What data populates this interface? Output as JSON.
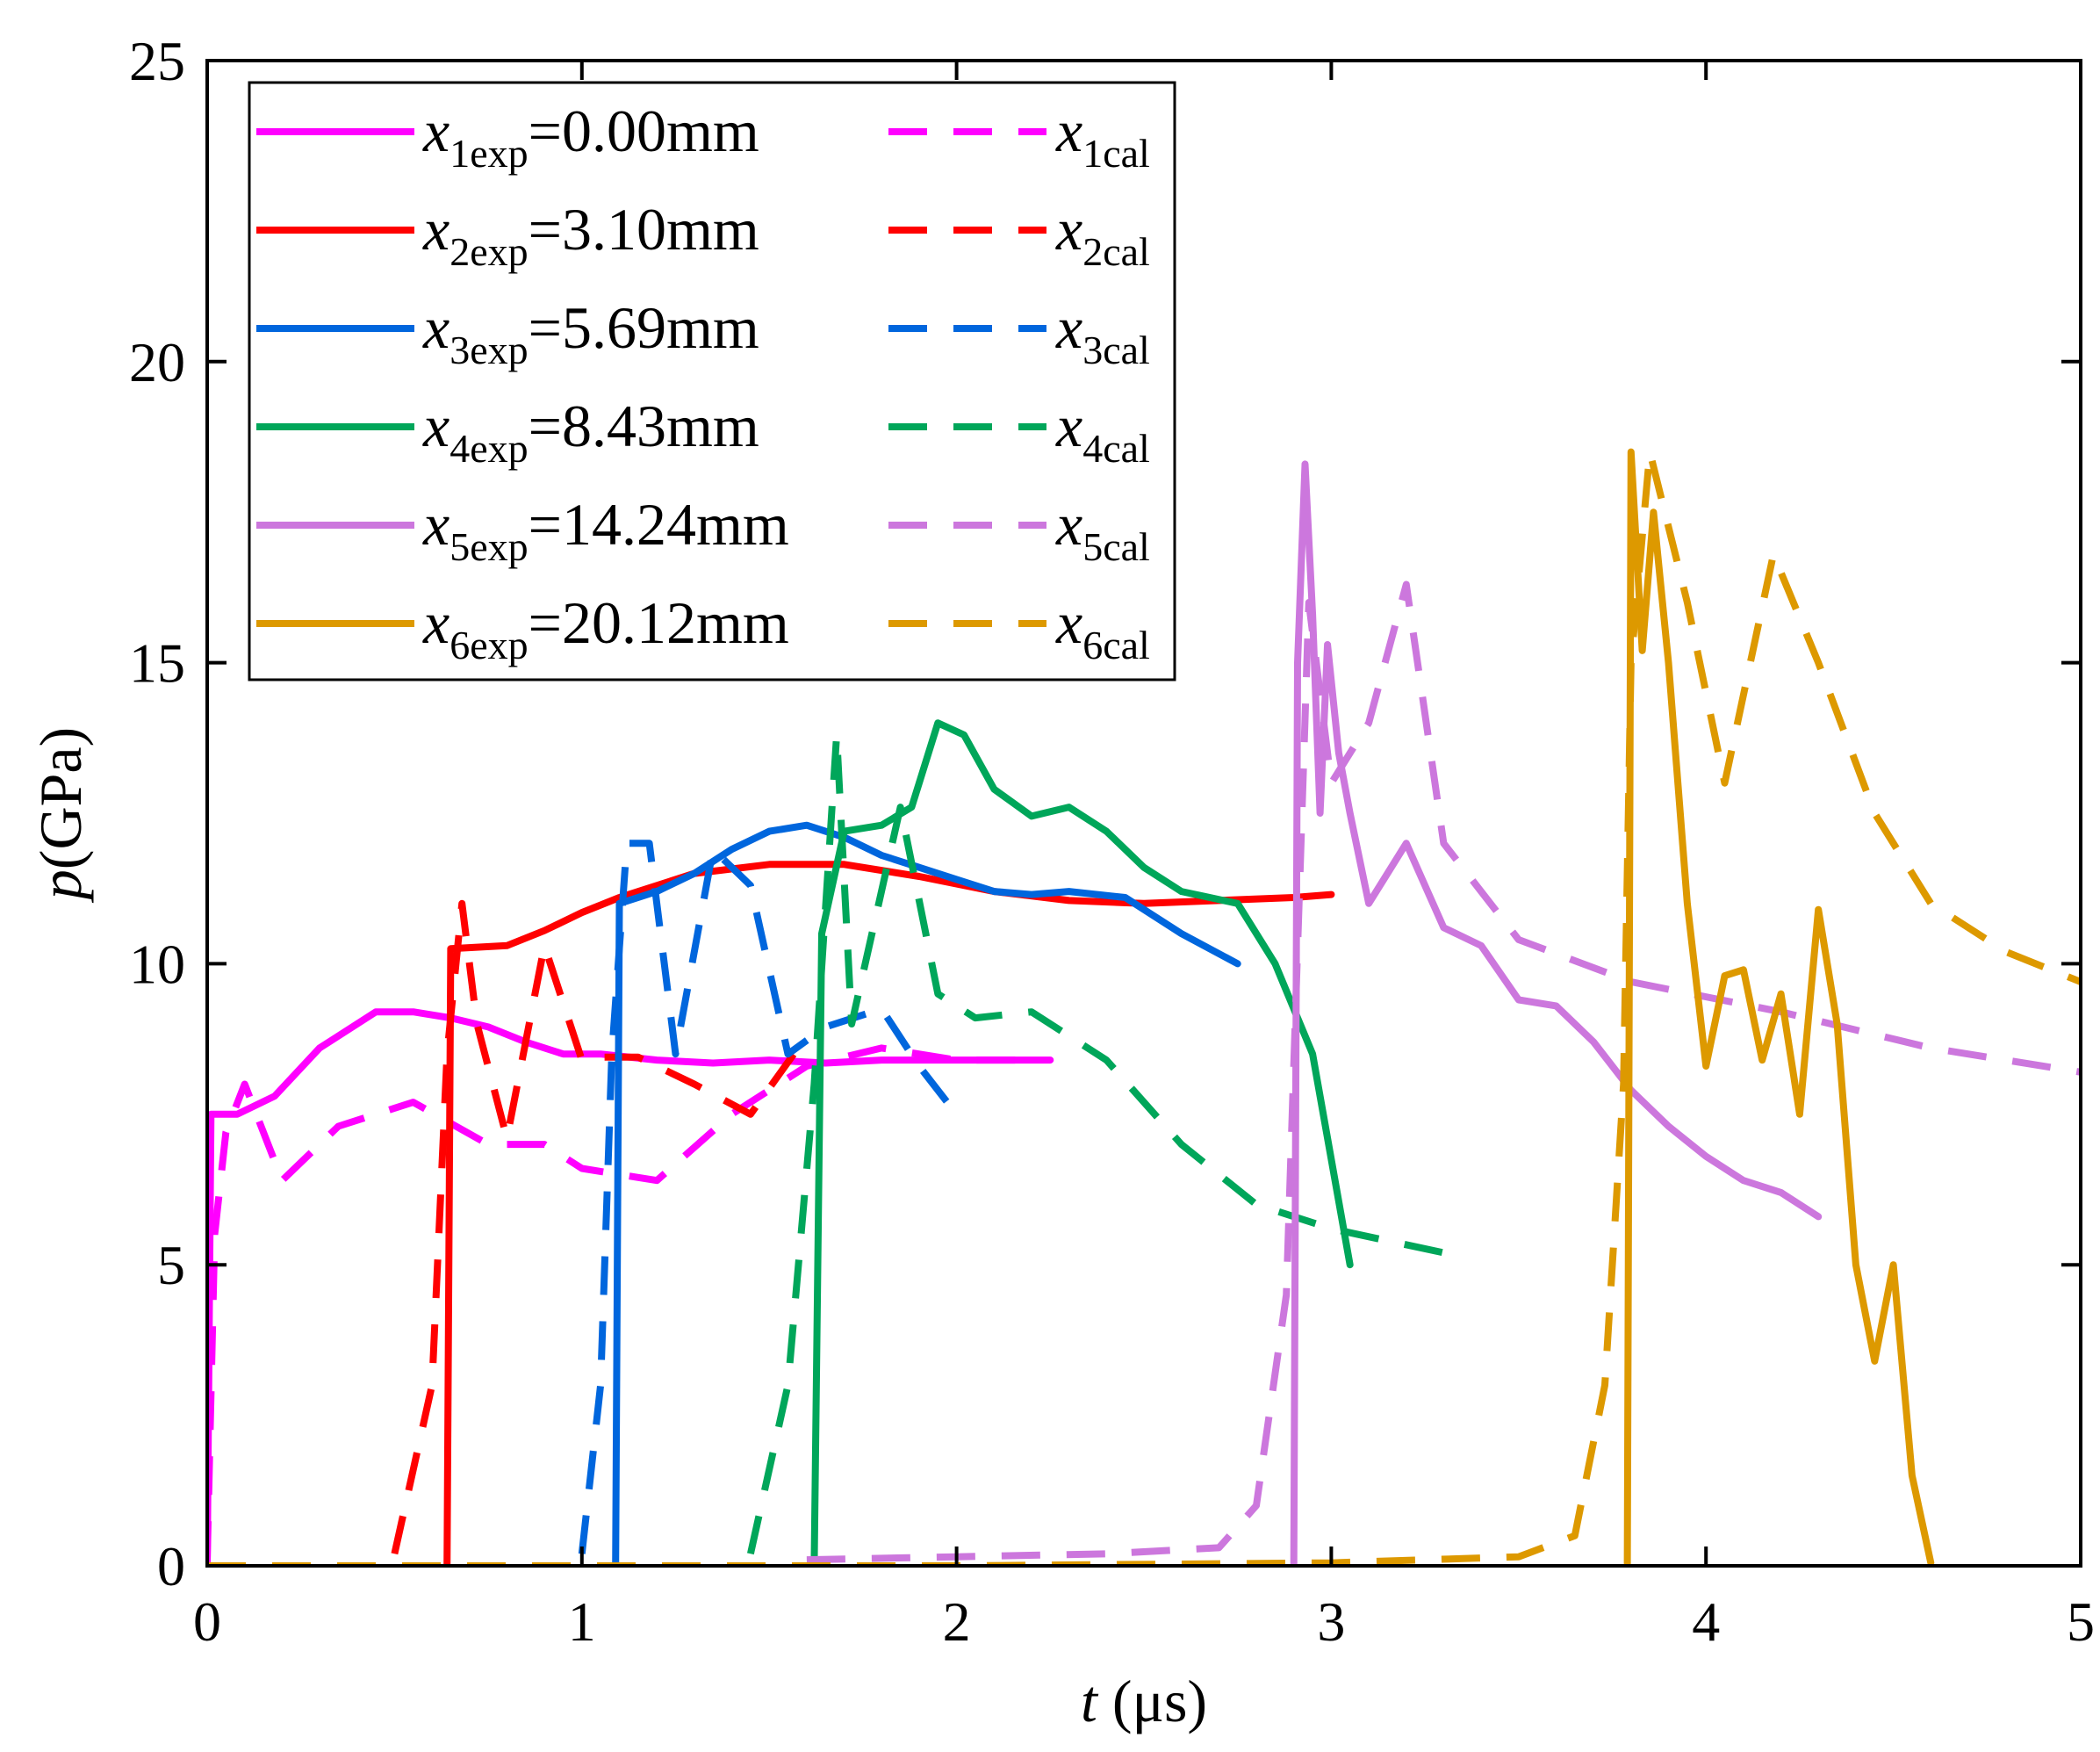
{
  "chart_data": {
    "type": "line",
    "title": "",
    "xlabel": {
      "var": "t",
      "unit": " (μs)"
    },
    "ylabel": {
      "var": "p",
      "unit": "(GPa)"
    },
    "xlim": [
      0,
      5
    ],
    "ylim": [
      0,
      25
    ],
    "xticks": [
      0,
      1,
      2,
      3,
      4,
      5
    ],
    "yticks": [
      0,
      5,
      10,
      15,
      20,
      25
    ],
    "grid": false,
    "legend_position": "top-left",
    "series": [
      {
        "name": "x1exp=0.00mm",
        "var": "x",
        "index": "1",
        "sub": "exp",
        "value": "=0.00mm",
        "color": "#ff00ff",
        "dash": "solid",
        "points": [
          [
            0.0,
            0.0
          ],
          [
            0.01,
            7.5
          ],
          [
            0.08,
            7.5
          ],
          [
            0.18,
            7.8
          ],
          [
            0.3,
            8.6
          ],
          [
            0.45,
            9.2
          ],
          [
            0.55,
            9.2
          ],
          [
            0.65,
            9.1
          ],
          [
            0.75,
            8.95
          ],
          [
            0.85,
            8.7
          ],
          [
            0.95,
            8.5
          ],
          [
            1.05,
            8.5
          ],
          [
            1.2,
            8.4
          ],
          [
            1.35,
            8.35
          ],
          [
            1.5,
            8.4
          ],
          [
            1.65,
            8.35
          ],
          [
            1.8,
            8.4
          ],
          [
            1.95,
            8.4
          ],
          [
            2.1,
            8.4
          ],
          [
            2.25,
            8.4
          ]
        ]
      },
      {
        "name": "x1cal",
        "var": "x",
        "index": "1",
        "sub": "cal",
        "value": "",
        "color": "#ff00ff",
        "dash": "dashed",
        "points": [
          [
            0.0,
            0.1
          ],
          [
            0.02,
            5.5
          ],
          [
            0.05,
            7.2
          ],
          [
            0.1,
            8.0
          ],
          [
            0.2,
            6.4
          ],
          [
            0.35,
            7.3
          ],
          [
            0.55,
            7.7
          ],
          [
            0.75,
            7.0
          ],
          [
            0.9,
            7.0
          ],
          [
            1.0,
            6.6
          ],
          [
            1.2,
            6.4
          ],
          [
            1.4,
            7.5
          ],
          [
            1.6,
            8.3
          ],
          [
            1.8,
            8.6
          ],
          [
            2.0,
            8.4
          ],
          [
            2.2,
            8.4
          ]
        ]
      },
      {
        "name": "x2exp=3.10mm",
        "var": "x",
        "index": "2",
        "sub": "exp",
        "value": "=3.10mm",
        "color": "#ff0000",
        "dash": "solid",
        "points": [
          [
            0.64,
            0.0
          ],
          [
            0.65,
            10.25
          ],
          [
            0.8,
            10.3
          ],
          [
            0.9,
            10.55
          ],
          [
            1.0,
            10.85
          ],
          [
            1.1,
            11.1
          ],
          [
            1.3,
            11.5
          ],
          [
            1.5,
            11.65
          ],
          [
            1.7,
            11.65
          ],
          [
            1.9,
            11.45
          ],
          [
            2.1,
            11.2
          ],
          [
            2.3,
            11.05
          ],
          [
            2.5,
            11.0
          ],
          [
            2.7,
            11.05
          ],
          [
            2.9,
            11.1
          ],
          [
            3.0,
            11.15
          ]
        ]
      },
      {
        "name": "x2cal",
        "var": "x",
        "index": "2",
        "sub": "cal",
        "value": "",
        "color": "#ff0000",
        "dash": "dashed",
        "points": [
          [
            0.5,
            0.2
          ],
          [
            0.6,
            3.0
          ],
          [
            0.64,
            8.5
          ],
          [
            0.68,
            11.0
          ],
          [
            0.72,
            9.0
          ],
          [
            0.8,
            7.1
          ],
          [
            0.9,
            10.3
          ],
          [
            1.0,
            8.4
          ],
          [
            1.05,
            8.45
          ],
          [
            1.15,
            8.45
          ],
          [
            1.3,
            8.0
          ],
          [
            1.45,
            7.5
          ],
          [
            1.6,
            8.8
          ]
        ]
      },
      {
        "name": "x3exp=5.69mm",
        "var": "x",
        "index": "3",
        "sub": "exp",
        "value": "=5.69mm",
        "color": "#0066dd",
        "dash": "solid",
        "points": [
          [
            1.09,
            0.0
          ],
          [
            1.1,
            11.0
          ],
          [
            1.2,
            11.2
          ],
          [
            1.3,
            11.5
          ],
          [
            1.4,
            11.9
          ],
          [
            1.5,
            12.2
          ],
          [
            1.6,
            12.3
          ],
          [
            1.7,
            12.1
          ],
          [
            1.8,
            11.8
          ],
          [
            1.9,
            11.6
          ],
          [
            2.0,
            11.4
          ],
          [
            2.1,
            11.2
          ],
          [
            2.2,
            11.15
          ],
          [
            2.3,
            11.2
          ],
          [
            2.45,
            11.1
          ],
          [
            2.6,
            10.5
          ],
          [
            2.75,
            10.0
          ]
        ]
      },
      {
        "name": "x3cal",
        "var": "x",
        "index": "3",
        "sub": "cal",
        "value": "",
        "color": "#0066dd",
        "dash": "dashed",
        "points": [
          [
            1.0,
            0.2
          ],
          [
            1.05,
            3.0
          ],
          [
            1.08,
            8.5
          ],
          [
            1.12,
            12.0
          ],
          [
            1.18,
            12.0
          ],
          [
            1.25,
            8.5
          ],
          [
            1.35,
            11.9
          ],
          [
            1.45,
            11.3
          ],
          [
            1.55,
            8.5
          ],
          [
            1.65,
            8.95
          ],
          [
            1.8,
            9.25
          ],
          [
            1.9,
            8.3
          ],
          [
            2.0,
            7.5
          ]
        ]
      },
      {
        "name": "x4exp=8.43mm",
        "var": "x",
        "index": "4",
        "sub": "exp",
        "value": "=8.43mm",
        "color": "#00a65a",
        "dash": "solid",
        "points": [
          [
            1.62,
            0.0
          ],
          [
            1.64,
            10.5
          ],
          [
            1.7,
            12.2
          ],
          [
            1.8,
            12.3
          ],
          [
            1.88,
            12.6
          ],
          [
            1.95,
            14.0
          ],
          [
            2.02,
            13.8
          ],
          [
            2.1,
            12.9
          ],
          [
            2.2,
            12.45
          ],
          [
            2.3,
            12.6
          ],
          [
            2.4,
            12.2
          ],
          [
            2.5,
            11.6
          ],
          [
            2.6,
            11.2
          ],
          [
            2.75,
            11.0
          ],
          [
            2.85,
            10.0
          ],
          [
            2.95,
            8.5
          ],
          [
            3.05,
            5.0
          ]
        ]
      },
      {
        "name": "x4cal",
        "var": "x",
        "index": "4",
        "sub": "cal",
        "value": "",
        "color": "#00a65a",
        "dash": "dashed",
        "points": [
          [
            1.45,
            0.2
          ],
          [
            1.55,
            3.0
          ],
          [
            1.62,
            8.0
          ],
          [
            1.68,
            13.8
          ],
          [
            1.72,
            9.0
          ],
          [
            1.85,
            12.6
          ],
          [
            1.95,
            9.5
          ],
          [
            2.05,
            9.1
          ],
          [
            2.2,
            9.2
          ],
          [
            2.4,
            8.4
          ],
          [
            2.6,
            7.0
          ],
          [
            2.8,
            6.0
          ],
          [
            3.0,
            5.6
          ],
          [
            3.3,
            5.2
          ]
        ]
      },
      {
        "name": "x5exp=14.24mm",
        "var": "x",
        "index": "5",
        "sub": "exp",
        "value": "=14.24mm",
        "color": "#cc77dd",
        "dash": "solid",
        "points": [
          [
            2.9,
            0.0
          ],
          [
            2.91,
            15.0
          ],
          [
            2.93,
            18.3
          ],
          [
            2.95,
            15.8
          ],
          [
            2.97,
            12.5
          ],
          [
            2.99,
            15.3
          ],
          [
            3.02,
            13.5
          ],
          [
            3.05,
            12.5
          ],
          [
            3.1,
            11.0
          ],
          [
            3.15,
            11.5
          ],
          [
            3.2,
            12.0
          ],
          [
            3.3,
            10.6
          ],
          [
            3.4,
            10.3
          ],
          [
            3.5,
            9.4
          ],
          [
            3.6,
            9.3
          ],
          [
            3.7,
            8.7
          ],
          [
            3.8,
            7.9
          ],
          [
            3.9,
            7.3
          ],
          [
            4.0,
            6.8
          ],
          [
            4.1,
            6.4
          ],
          [
            4.2,
            6.2
          ],
          [
            4.3,
            5.8
          ]
        ]
      },
      {
        "name": "x5cal",
        "var": "x",
        "index": "5",
        "sub": "cal",
        "value": "",
        "color": "#cc77dd",
        "dash": "dashed",
        "points": [
          [
            1.6,
            0.1
          ],
          [
            2.0,
            0.15
          ],
          [
            2.4,
            0.2
          ],
          [
            2.7,
            0.3
          ],
          [
            2.8,
            1.0
          ],
          [
            2.88,
            4.5
          ],
          [
            2.94,
            16.0
          ],
          [
            3.0,
            13.0
          ],
          [
            3.1,
            14.0
          ],
          [
            3.2,
            16.3
          ],
          [
            3.3,
            12.0
          ],
          [
            3.5,
            10.4
          ],
          [
            3.8,
            9.7
          ],
          [
            4.2,
            9.2
          ],
          [
            4.6,
            8.6
          ],
          [
            5.0,
            8.2
          ]
        ]
      },
      {
        "name": "x6exp=20.12mm",
        "var": "x",
        "index": "6",
        "sub": "exp",
        "value": "=20.12mm",
        "color": "#dd9900",
        "dash": "solid",
        "points": [
          [
            3.79,
            0.0
          ],
          [
            3.8,
            18.5
          ],
          [
            3.83,
            15.2
          ],
          [
            3.86,
            17.5
          ],
          [
            3.9,
            15.0
          ],
          [
            3.95,
            11.0
          ],
          [
            4.0,
            8.3
          ],
          [
            4.05,
            9.8
          ],
          [
            4.1,
            9.9
          ],
          [
            4.15,
            8.4
          ],
          [
            4.2,
            9.5
          ],
          [
            4.25,
            7.5
          ],
          [
            4.3,
            10.9
          ],
          [
            4.35,
            9.0
          ],
          [
            4.4,
            5.0
          ],
          [
            4.45,
            3.4
          ],
          [
            4.5,
            5.0
          ],
          [
            4.55,
            1.5
          ],
          [
            4.6,
            0.05
          ]
        ]
      },
      {
        "name": "x6cal",
        "var": "x",
        "index": "6",
        "sub": "cal",
        "value": "",
        "color": "#dd9900",
        "dash": "dashed",
        "points": [
          [
            0.0,
            0.0
          ],
          [
            1.0,
            0.0
          ],
          [
            2.0,
            0.0
          ],
          [
            3.0,
            0.05
          ],
          [
            3.5,
            0.15
          ],
          [
            3.65,
            0.5
          ],
          [
            3.73,
            3.0
          ],
          [
            3.78,
            8.0
          ],
          [
            3.8,
            15.0
          ],
          [
            3.85,
            18.5
          ],
          [
            3.95,
            16.0
          ],
          [
            4.05,
            13.0
          ],
          [
            4.18,
            16.8
          ],
          [
            4.3,
            15.0
          ],
          [
            4.45,
            12.5
          ],
          [
            4.6,
            11.0
          ],
          [
            4.8,
            10.2
          ],
          [
            5.0,
            9.7
          ]
        ]
      }
    ]
  }
}
